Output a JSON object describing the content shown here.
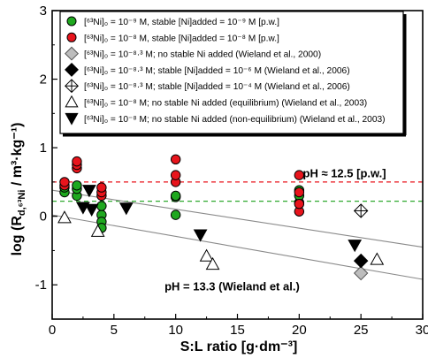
{
  "chart_data": {
    "type": "scatter",
    "xlabel": "S:L ratio [g·dm⁻³]",
    "ylabel": "log (R",
    "ylabel_sub": "d,⁶³Ni",
    "ylabel_unit": " / m³·kg⁻¹)",
    "xlim": [
      0,
      30
    ],
    "ylim": [
      -1.5,
      3
    ],
    "xticks": [
      0,
      5,
      10,
      15,
      20,
      25,
      30
    ],
    "yticks": [
      -1,
      0,
      1,
      2,
      3
    ],
    "xtick_labels": [
      "0",
      "5",
      "10",
      "15",
      "20",
      "25",
      "30"
    ],
    "ytick_labels": [
      "-1",
      "0",
      "1",
      "2",
      "3"
    ],
    "legend_position": "top-left inside",
    "series": [
      {
        "legend": "[⁶³Ni]₀ = 10⁻⁹ M, stable [Ni]added = 10⁻⁹ M [p.w.]",
        "marker": "circle",
        "fill": "#1fa81f",
        "stroke": "#000000",
        "points": [
          [
            1,
            0.35
          ],
          [
            1,
            0.42
          ],
          [
            2,
            0.3
          ],
          [
            2,
            0.4
          ],
          [
            2,
            0.45
          ],
          [
            4,
            0.02
          ],
          [
            4,
            -0.08
          ],
          [
            4,
            -0.17
          ],
          [
            4,
            0.15
          ],
          [
            10,
            0.02
          ],
          [
            10,
            0.28
          ],
          [
            10,
            0.3
          ],
          [
            20,
            0.2
          ],
          [
            20,
            0.3
          ],
          [
            20,
            0.38
          ]
        ]
      },
      {
        "legend": "[⁶³Ni]₀ = 10⁻⁸ M, stable [Ni]added = 10⁻⁸ M [p.w.]",
        "marker": "circle",
        "fill": "#e8141c",
        "stroke": "#000000",
        "points": [
          [
            1,
            0.45
          ],
          [
            1,
            0.5
          ],
          [
            2,
            0.7
          ],
          [
            2,
            0.75
          ],
          [
            2,
            0.8
          ],
          [
            4,
            0.3
          ],
          [
            4,
            0.35
          ],
          [
            4,
            0.42
          ],
          [
            10,
            0.5
          ],
          [
            10,
            0.6
          ],
          [
            10,
            0.83
          ],
          [
            20,
            0.07
          ],
          [
            20,
            0.18
          ],
          [
            20,
            0.35
          ],
          [
            20,
            0.6
          ]
        ]
      },
      {
        "legend": "[⁶³Ni]₀ = 10⁻⁸·³ M; no stable Ni added (Wieland et al., 2000)",
        "marker": "diamond",
        "fill": "#bdbdbd",
        "stroke": "#555555",
        "points": [
          [
            25,
            -0.83
          ]
        ]
      },
      {
        "legend": "[⁶³Ni]₀ = 10⁻⁸·³ M; stable [Ni]added = 10⁻⁶ M (Wieland et al., 2006)",
        "marker": "diamond",
        "fill": "#000000",
        "stroke": "#000000",
        "points": [
          [
            25,
            -0.65
          ]
        ]
      },
      {
        "legend": "[⁶³Ni]₀ = 10⁻⁸·³ M; stable [Ni]added = 10⁻⁴ M (Wieland et al., 2006)",
        "marker": "diamond-cross",
        "fill": "#ffffff",
        "stroke": "#000000",
        "points": [
          [
            25,
            0.08
          ]
        ]
      },
      {
        "legend": "[⁶³Ni]₀ = 10⁻⁸ M; no stable Ni added (equilibrium) (Wieland et al., 2003)",
        "marker": "triangle-up",
        "fill": "#ffffff",
        "stroke": "#000000",
        "points": [
          [
            1,
            -0.02
          ],
          [
            3.7,
            -0.22
          ],
          [
            12.5,
            -0.58
          ],
          [
            13,
            -0.7
          ],
          [
            26.3,
            -0.63
          ]
        ]
      },
      {
        "legend": "[⁶³Ni]₀ = 10⁻⁸ M; no stable Ni added (non-equilibrium) (Wieland et al., 2003)",
        "marker": "triangle-down",
        "fill": "#000000",
        "stroke": "#000000",
        "points": [
          [
            2.5,
            0.13
          ],
          [
            3,
            0.38
          ],
          [
            3.2,
            0.1
          ],
          [
            6,
            0.12
          ],
          [
            12,
            -0.27
          ],
          [
            24.5,
            -0.42
          ]
        ]
      }
    ],
    "reference_lines": [
      {
        "y": 0.5,
        "color": "#e8141c",
        "style": "dashed"
      },
      {
        "y": 0.22,
        "color": "#2fa82f",
        "style": "dashed"
      }
    ],
    "fit_lines": [
      {
        "x1": 0,
        "y1": 0.38,
        "x2": 30,
        "y2": -0.45,
        "color": "#8a8a8a"
      },
      {
        "x1": 0,
        "y1": 0.02,
        "x2": 30,
        "y2": -0.92,
        "color": "#8a8a8a"
      }
    ],
    "annotations": [
      {
        "text": "pH ≈ 12.5 [p.w.]",
        "x": 20.3,
        "y": 0.57
      },
      {
        "text": "pH = 13.3 (Wieland et al.)",
        "x": 9.1,
        "y": -1.08
      }
    ]
  }
}
